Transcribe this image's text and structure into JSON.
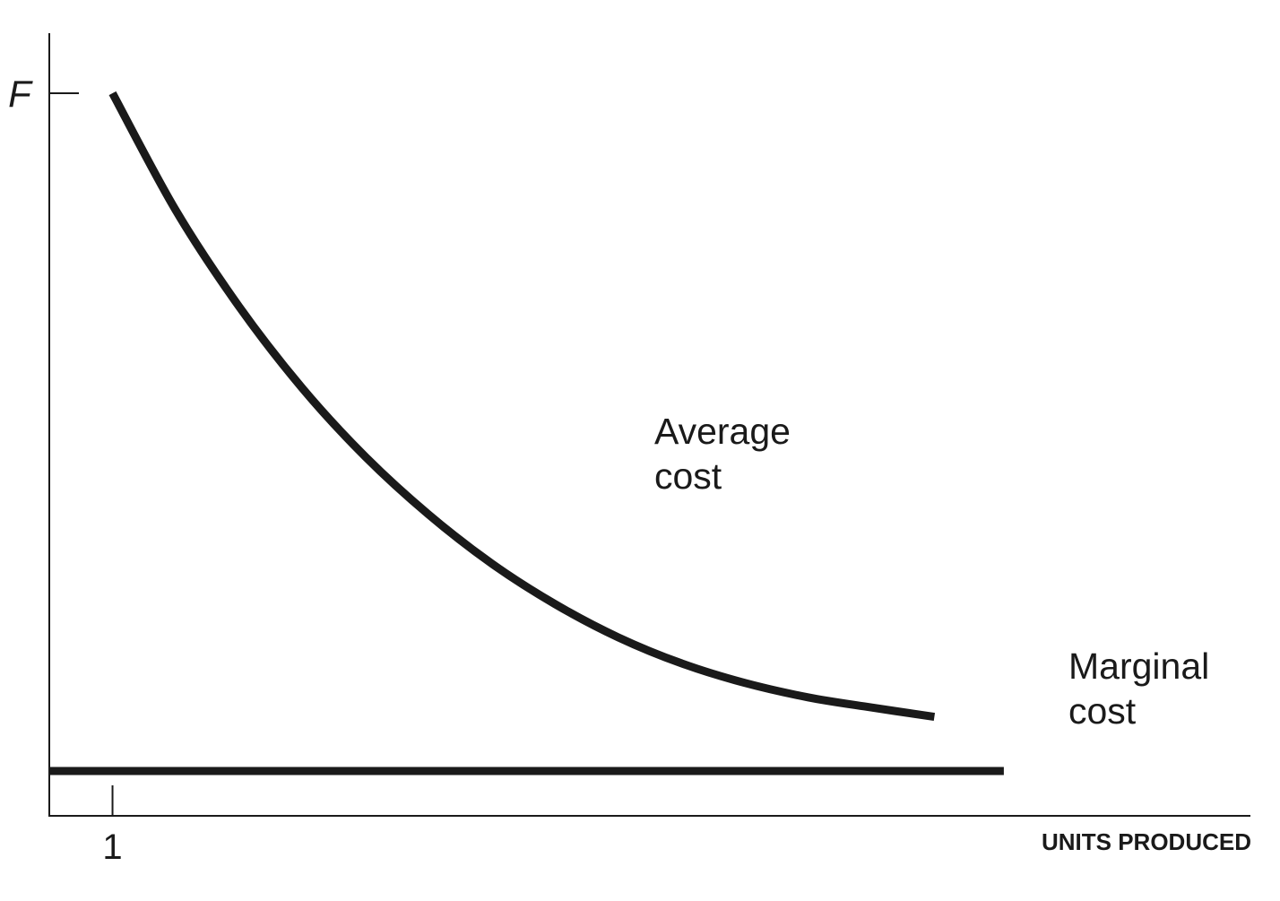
{
  "chart_data": {
    "type": "line",
    "title": "",
    "xlabel": "UNITS PRODUCED",
    "ylabel": "",
    "x_ticks": [
      {
        "value": 1,
        "label": "1"
      }
    ],
    "y_ticks": [
      {
        "value": 1,
        "label": "F"
      }
    ],
    "xlim": [
      0,
      19
    ],
    "ylim": [
      0,
      1.07
    ],
    "series": [
      {
        "name": "Average cost",
        "label_lines": [
          "Average",
          "cost"
        ],
        "points": [
          [
            1.0,
            1.0
          ],
          [
            2.0,
            0.838
          ],
          [
            3.0,
            0.705
          ],
          [
            4.0,
            0.592
          ],
          [
            5.0,
            0.497
          ],
          [
            6.0,
            0.417
          ],
          [
            7.0,
            0.349
          ],
          [
            8.0,
            0.293
          ],
          [
            9.0,
            0.247
          ],
          [
            10.0,
            0.211
          ],
          [
            11.0,
            0.184
          ],
          [
            12.0,
            0.164
          ],
          [
            13.0,
            0.15
          ],
          [
            14.0,
            0.137
          ]
        ]
      },
      {
        "name": "Marginal cost",
        "label_lines": [
          "Marginal",
          "cost"
        ],
        "points": [
          [
            0,
            0.062
          ],
          [
            15.1,
            0.062
          ]
        ]
      }
    ],
    "grid": false,
    "legend": "none",
    "line_color": "#1a1a1a"
  }
}
